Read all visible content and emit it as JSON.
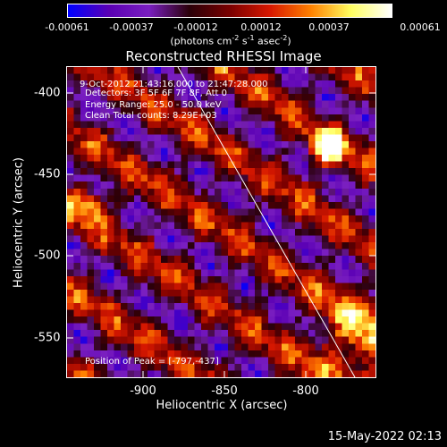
{
  "colorbar": {
    "ticks": [
      "-0.00061",
      "-0.00037",
      "-0.00012",
      "0.00012",
      "0.00037",
      "0.00061"
    ],
    "units_prefix": "(photons cm",
    "units_sup1": "-2",
    "units_mid": " s",
    "units_sup2": "-1",
    "units_mid2": " asec",
    "units_sup3": "-2",
    "units_suffix": ")"
  },
  "title": "Reconstructed RHESSI Image",
  "annotations": {
    "time": "9-Oct-2012 21:43:16.000 to 21:47:28.000",
    "detectors": "Detectors: 3F 5F 6F 7F 8F, Att 0",
    "energy": "Energy Range: 25.0 - 50.0 keV",
    "clean": "Clean     Total counts: 8.29E+03",
    "peak": "Position of Peak = [-797,-437]"
  },
  "axes": {
    "xlabel": "Heliocentric X (arcsec)",
    "ylabel": "Heliocentric Y (arcsec)",
    "xticks": [
      "-900",
      "-850",
      "-800"
    ],
    "yticks": [
      "-400",
      "-450",
      "-500",
      "-550"
    ]
  },
  "footer_date": "15-May-2022 02:13",
  "chart_data": {
    "type": "heatmap",
    "title": "Reconstructed RHESSI Image",
    "xlabel": "Heliocentric X (arcsec)",
    "ylabel": "Heliocentric Y (arcsec)",
    "xlim": [
      -947,
      -771
    ],
    "ylim": [
      -574,
      -384
    ],
    "xticks": [
      -900,
      -850,
      -800
    ],
    "yticks": [
      -400,
      -450,
      -500,
      -550
    ],
    "color_range": [
      -0.00061,
      0.00061
    ],
    "peak": [
      -797,
      -437
    ],
    "colormap": [
      "#0000ff",
      "#5a00b4",
      "#7a1fc0",
      "#2a0008",
      "#7a0000",
      "#d81800",
      "#ff8000",
      "#ffff60",
      "#ffffff"
    ]
  }
}
